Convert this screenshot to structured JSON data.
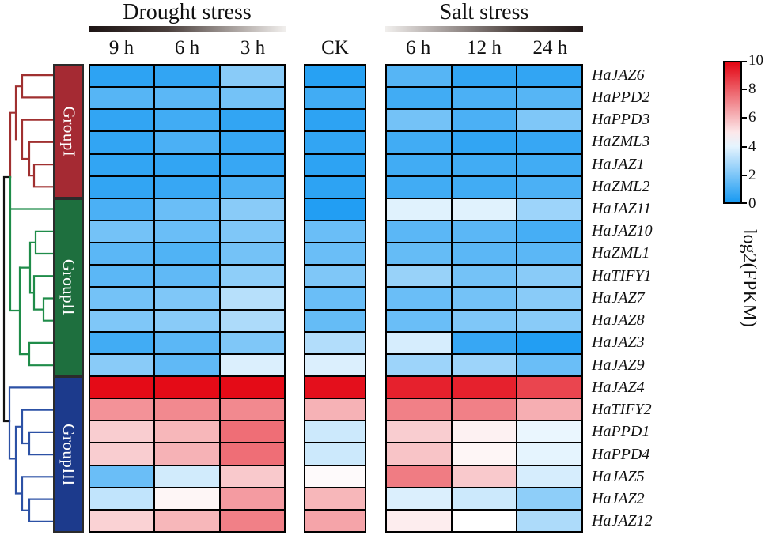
{
  "header": {
    "drought_title": "Drought stress",
    "salt_title": "Salt stress"
  },
  "groups": [
    {
      "label": "GroupI",
      "color": "#A52A33",
      "line_color": "#A03030",
      "rows": 6
    },
    {
      "label": "GroupII",
      "color": "#1E6F3E",
      "line_color": "#1F8C49",
      "rows": 8
    },
    {
      "label": "GroupIII",
      "color": "#1C3A8C",
      "line_color": "#2C51A5",
      "rows": 7
    }
  ],
  "dendrogram_root_color": "#111111",
  "legend": {
    "label": "log2(FPKM)",
    "ticks": [
      10,
      8,
      6,
      4,
      2,
      0
    ],
    "min": 0,
    "max": 10
  },
  "chart_data": {
    "type": "heatmap",
    "value_label": "log2(FPKM)",
    "value_range": [
      0,
      10
    ],
    "colormap": {
      "low": "#189AF2",
      "mid": "#FFFFFF",
      "high": "#E30613",
      "midpoint": 4.5
    },
    "column_blocks": [
      {
        "header": "Drought stress",
        "cols": [
          "9 h",
          "6 h",
          "3 h"
        ]
      },
      {
        "header": "",
        "cols": [
          "CK"
        ]
      },
      {
        "header": "Salt stress",
        "cols": [
          "6 h",
          "12 h",
          "24 h"
        ]
      }
    ],
    "columns": [
      "Drought 9 h",
      "Drought 6 h",
      "Drought 3 h",
      "CK",
      "Salt 6 h",
      "Salt 12 h",
      "Salt 24 h"
    ],
    "rows": [
      {
        "gene": "HaJAZ6",
        "group": "GroupI",
        "values": [
          0.4,
          0.5,
          2.2,
          0.3,
          1.2,
          0.5,
          0.5
        ]
      },
      {
        "gene": "HaPPD2",
        "group": "GroupI",
        "values": [
          1.2,
          1.3,
          1.8,
          0.8,
          0.8,
          1.0,
          1.2
        ]
      },
      {
        "gene": "HaPPD3",
        "group": "GroupI",
        "values": [
          0.5,
          0.8,
          0.5,
          0.4,
          1.8,
          1.0,
          2.0
        ]
      },
      {
        "gene": "HaZML3",
        "group": "GroupI",
        "values": [
          0.5,
          1.0,
          0.6,
          0.5,
          0.8,
          0.5,
          0.6
        ]
      },
      {
        "gene": "HaJAZ1",
        "group": "GroupI",
        "values": [
          0.5,
          0.5,
          0.6,
          0.4,
          0.8,
          0.8,
          0.8
        ]
      },
      {
        "gene": "HaZML2",
        "group": "GroupI",
        "values": [
          0.5,
          0.6,
          1.0,
          0.4,
          0.8,
          0.8,
          1.0
        ]
      },
      {
        "gene": "HaJAZ11",
        "group": "GroupII",
        "values": [
          1.0,
          1.6,
          2.2,
          0.2,
          3.9,
          3.9,
          2.6
        ]
      },
      {
        "gene": "HaJAZ10",
        "group": "GroupII",
        "values": [
          1.8,
          1.6,
          2.0,
          1.6,
          1.3,
          1.3,
          0.9
        ]
      },
      {
        "gene": "HaZML1",
        "group": "GroupII",
        "values": [
          1.3,
          1.1,
          1.8,
          1.6,
          1.5,
          1.3,
          1.3
        ]
      },
      {
        "gene": "HaTIFY1",
        "group": "GroupII",
        "values": [
          1.3,
          1.4,
          2.3,
          2.0,
          2.5,
          1.8,
          2.2
        ]
      },
      {
        "gene": "HaJAZ7",
        "group": "GroupII",
        "values": [
          1.8,
          2.0,
          3.1,
          1.6,
          1.6,
          1.8,
          2.2
        ]
      },
      {
        "gene": "HaJAZ8",
        "group": "GroupII",
        "values": [
          2.0,
          2.2,
          2.9,
          1.5,
          1.6,
          2.0,
          2.2
        ]
      },
      {
        "gene": "HaJAZ3",
        "group": "GroupII",
        "values": [
          0.8,
          1.3,
          2.0,
          3.0,
          3.7,
          0.6,
          0.2
        ]
      },
      {
        "gene": "HaJAZ9",
        "group": "GroupII",
        "values": [
          2.2,
          1.4,
          3.8,
          3.8,
          2.6,
          2.6,
          1.6
        ]
      },
      {
        "gene": "HaJAZ4",
        "group": "GroupIII",
        "values": [
          9.9,
          9.9,
          9.9,
          9.8,
          9.4,
          9.4,
          8.6
        ]
      },
      {
        "gene": "HaTIFY2",
        "group": "GroupIII",
        "values": [
          6.9,
          7.1,
          7.1,
          6.2,
          7.3,
          7.3,
          6.3
        ]
      },
      {
        "gene": "HaPPD1",
        "group": "GroupIII",
        "values": [
          5.6,
          6.1,
          7.7,
          3.5,
          5.6,
          4.8,
          4.1
        ]
      },
      {
        "gene": "HaPPD4",
        "group": "GroupIII",
        "values": [
          5.6,
          6.2,
          7.7,
          3.5,
          5.8,
          4.7,
          4.0
        ]
      },
      {
        "gene": "HaJAZ5",
        "group": "GroupIII",
        "values": [
          1.6,
          3.6,
          5.7,
          4.6,
          7.4,
          5.7,
          3.7
        ]
      },
      {
        "gene": "HaJAZ2",
        "group": "GroupIII",
        "values": [
          3.3,
          4.7,
          6.7,
          6.1,
          3.8,
          3.5,
          2.3
        ]
      },
      {
        "gene": "HaJAZ12",
        "group": "GroupIII",
        "values": [
          5.5,
          6.1,
          7.3,
          6.5,
          4.9,
          4.5,
          2.9
        ]
      }
    ]
  }
}
